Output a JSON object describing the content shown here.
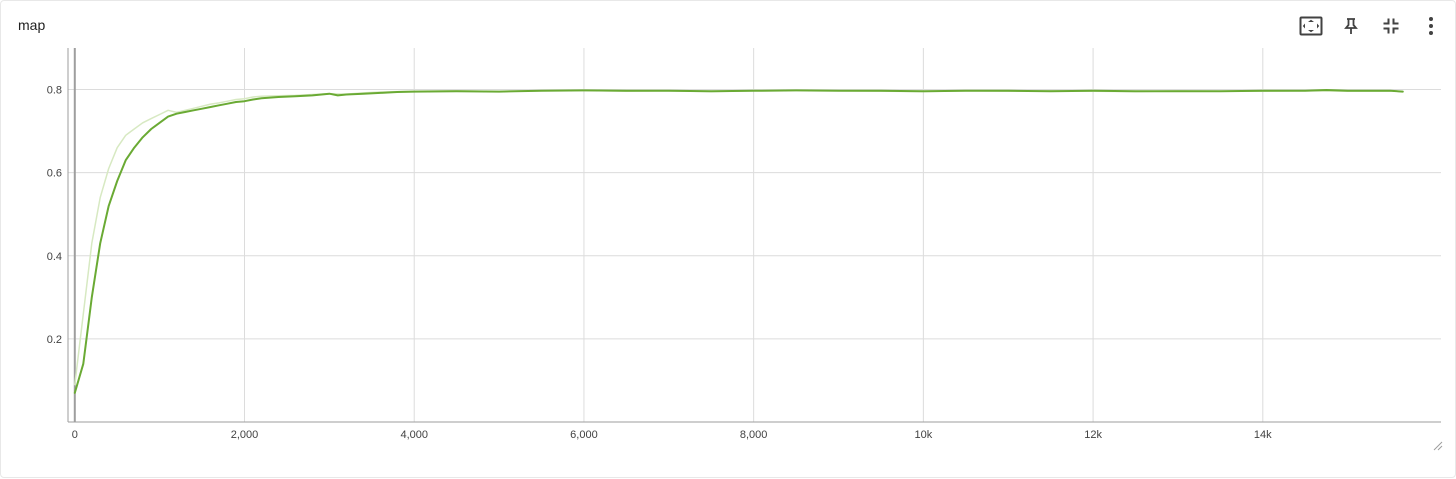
{
  "card": {
    "title": "map"
  },
  "toolbar": {
    "icons": [
      "fit-domain-icon",
      "pin-icon",
      "collapse-icon",
      "more-vert-icon"
    ]
  },
  "colors": {
    "smoothed": "#6aaa34",
    "raw": "#d7e9c2",
    "grid": "#dcdcdc",
    "axis": "#9e9e9e"
  },
  "chart_data": {
    "type": "line",
    "title": "",
    "xlabel": "",
    "ylabel": "",
    "xlim": [
      -80,
      16100
    ],
    "ylim": [
      0,
      0.9
    ],
    "x_ticks": [
      0,
      2000,
      4000,
      6000,
      8000,
      10000,
      12000,
      14000
    ],
    "x_tick_labels": [
      "0",
      "2,000",
      "4,000",
      "6,000",
      "8,000",
      "10k",
      "12k",
      "14k"
    ],
    "y_ticks": [
      0.2,
      0.4,
      0.6,
      0.8
    ],
    "y_tick_labels": [
      "0.2",
      "0.4",
      "0.6",
      "0.8"
    ],
    "grid": true,
    "legend": "none",
    "series": [
      {
        "role": "raw",
        "x": [
          0,
          100,
          200,
          300,
          400,
          500,
          600,
          700,
          800,
          900,
          1000,
          1100,
          1200,
          1300,
          1400,
          1500,
          1600,
          1700,
          1800,
          1900,
          2000,
          2100,
          2200,
          2400,
          2600,
          2800,
          3000,
          3200,
          3400,
          3600,
          3800,
          4000,
          4500,
          5000,
          5500,
          6000,
          6500,
          7000,
          7500,
          8000,
          8500,
          9000,
          9500,
          10000,
          10500,
          11000,
          11500,
          12000,
          12500,
          13000,
          13500,
          14000,
          14500,
          15000,
          15500
        ],
        "y": [
          0.09,
          0.26,
          0.43,
          0.54,
          0.61,
          0.66,
          0.69,
          0.705,
          0.72,
          0.73,
          0.74,
          0.75,
          0.745,
          0.75,
          0.755,
          0.76,
          0.765,
          0.768,
          0.772,
          0.776,
          0.778,
          0.782,
          0.784,
          0.785,
          0.786,
          0.788,
          0.79,
          0.789,
          0.792,
          0.794,
          0.795,
          0.796,
          0.797,
          0.795,
          0.797,
          0.798,
          0.796,
          0.797,
          0.795,
          0.797,
          0.798,
          0.797,
          0.796,
          0.795,
          0.797,
          0.796,
          0.797,
          0.796,
          0.795,
          0.797,
          0.796,
          0.796,
          0.797,
          0.796,
          0.796
        ]
      },
      {
        "role": "smoothed",
        "x": [
          0,
          100,
          200,
          300,
          400,
          500,
          600,
          700,
          800,
          900,
          1000,
          1100,
          1200,
          1300,
          1400,
          1500,
          1600,
          1700,
          1800,
          1900,
          2000,
          2100,
          2200,
          2400,
          2600,
          2800,
          3000,
          3100,
          3200,
          3400,
          3600,
          3800,
          4000,
          4500,
          5000,
          5500,
          6000,
          6500,
          7000,
          7500,
          8000,
          8500,
          9000,
          9500,
          10000,
          10500,
          11000,
          11500,
          12000,
          12500,
          13000,
          13500,
          14000,
          14500,
          14750,
          15000,
          15500,
          15650
        ],
        "y": [
          0.07,
          0.14,
          0.3,
          0.43,
          0.52,
          0.58,
          0.63,
          0.66,
          0.685,
          0.705,
          0.72,
          0.735,
          0.742,
          0.746,
          0.75,
          0.754,
          0.758,
          0.762,
          0.766,
          0.77,
          0.772,
          0.776,
          0.779,
          0.782,
          0.784,
          0.786,
          0.79,
          0.786,
          0.788,
          0.79,
          0.792,
          0.794,
          0.795,
          0.796,
          0.795,
          0.797,
          0.798,
          0.797,
          0.797,
          0.796,
          0.797,
          0.798,
          0.797,
          0.797,
          0.796,
          0.797,
          0.797,
          0.796,
          0.797,
          0.796,
          0.796,
          0.796,
          0.797,
          0.797,
          0.799,
          0.797,
          0.797,
          0.795
        ]
      }
    ]
  }
}
